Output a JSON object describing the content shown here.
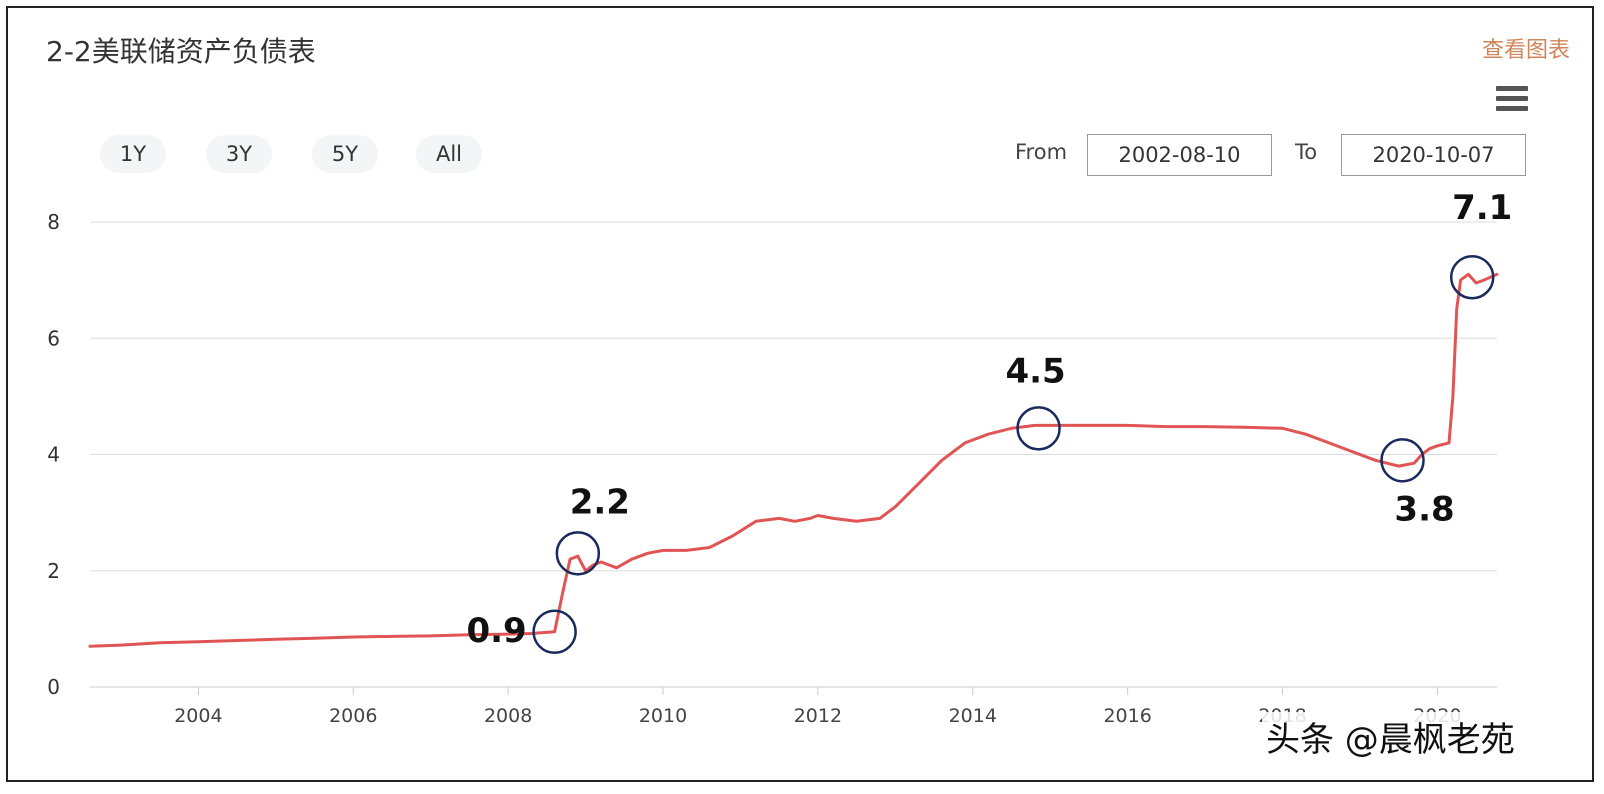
{
  "header": {
    "title": "2-2美联储资产负债表",
    "view_chart_link": "查看图表"
  },
  "controls": {
    "range_buttons": [
      "1Y",
      "3Y",
      "5Y",
      "All"
    ],
    "from_label": "From",
    "from_date": "2002-08-10",
    "to_label": "To",
    "to_date": "2020-10-07"
  },
  "watermark": "头条 @晨枫老苑",
  "colors": {
    "line": "#e05454",
    "circle": "#1b2a5e",
    "grid": "#dddddd",
    "link": "#d0865a"
  },
  "chart_data": {
    "type": "line",
    "title": "2-2美联储资产负债表",
    "xlabel": "",
    "ylabel": "",
    "x_ticks": [
      "2004",
      "2006",
      "2008",
      "2010",
      "2012",
      "2014",
      "2016",
      "2018",
      "2020"
    ],
    "y_ticks": [
      "0",
      "2",
      "4",
      "6",
      "8"
    ],
    "xlim": [
      2002.6,
      2020.77
    ],
    "ylim": [
      0,
      8
    ],
    "grid": true,
    "series": [
      {
        "x": [
          2002.6,
          2003.0,
          2003.5,
          2004.0,
          2004.5,
          2005.0,
          2005.5,
          2006.0,
          2006.5,
          2007.0,
          2007.5,
          2008.0,
          2008.3,
          2008.6,
          2008.7,
          2008.8,
          2008.9,
          2009.0,
          2009.1,
          2009.2,
          2009.4,
          2009.6,
          2009.8,
          2010.0,
          2010.3,
          2010.6,
          2010.9,
          2011.2,
          2011.5,
          2011.7,
          2011.9,
          2012.0,
          2012.2,
          2012.5,
          2012.8,
          2013.0,
          2013.3,
          2013.6,
          2013.9,
          2014.2,
          2014.5,
          2014.8,
          2015.0,
          2015.5,
          2016.0,
          2016.5,
          2017.0,
          2017.5,
          2018.0,
          2018.3,
          2018.6,
          2018.9,
          2019.2,
          2019.5,
          2019.7,
          2019.8,
          2019.9,
          2020.0,
          2020.15,
          2020.2,
          2020.25,
          2020.3,
          2020.4,
          2020.5,
          2020.6,
          2020.77
        ],
        "values": [
          0.7,
          0.72,
          0.76,
          0.78,
          0.8,
          0.82,
          0.84,
          0.86,
          0.87,
          0.88,
          0.9,
          0.91,
          0.92,
          0.95,
          1.6,
          2.2,
          2.25,
          2.0,
          2.1,
          2.15,
          2.05,
          2.2,
          2.3,
          2.35,
          2.35,
          2.4,
          2.6,
          2.85,
          2.9,
          2.85,
          2.9,
          2.95,
          2.9,
          2.85,
          2.9,
          3.1,
          3.5,
          3.9,
          4.2,
          4.35,
          4.45,
          4.5,
          4.5,
          4.5,
          4.5,
          4.48,
          4.48,
          4.47,
          4.45,
          4.35,
          4.2,
          4.05,
          3.9,
          3.8,
          3.85,
          4.0,
          4.1,
          4.15,
          4.2,
          5.0,
          6.5,
          7.0,
          7.1,
          6.95,
          7.0,
          7.1
        ]
      }
    ],
    "annotations": [
      {
        "label": "0.9",
        "x": 2008.6,
        "y": 0.95
      },
      {
        "label": "2.2",
        "x": 2008.9,
        "y": 2.3
      },
      {
        "label": "4.5",
        "x": 2014.85,
        "y": 4.45
      },
      {
        "label": "3.8",
        "x": 2019.55,
        "y": 3.9
      },
      {
        "label": "7.1",
        "x": 2020.45,
        "y": 7.05
      }
    ]
  }
}
